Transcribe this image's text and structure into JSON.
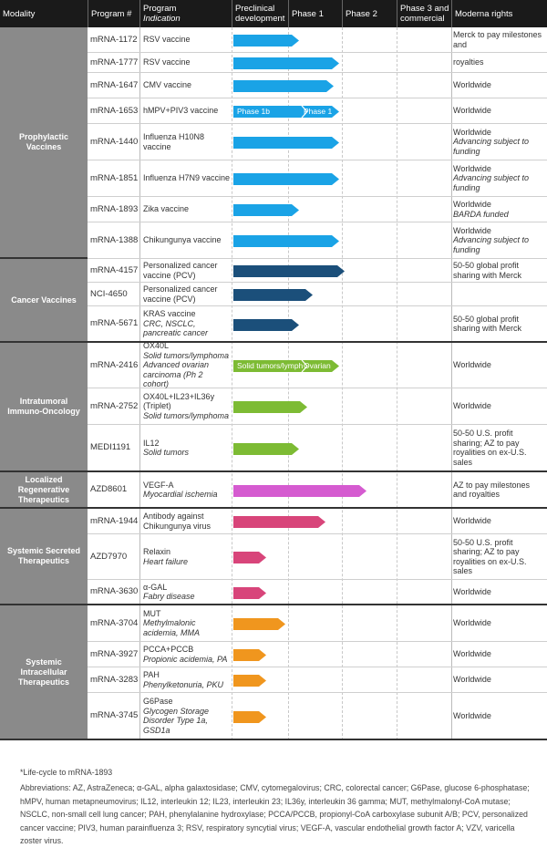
{
  "header": {
    "modality": "Modality",
    "program": "Program #",
    "program_ind": "Program",
    "indication": "Indication",
    "preclinical": "Preclinical development",
    "phase1": "Phase 1",
    "phase2": "Phase 2",
    "phase3": "Phase 3 and commercial",
    "rights": "Moderna rights"
  },
  "colors": {
    "prophylactic": "#1aa3e6",
    "cancer": "#1b4f7a",
    "intratumoral": "#7dbb34",
    "regenerative": "#d55bd0",
    "secreted": "#d8457a",
    "intracellular": "#f0961e",
    "header": "#1a1a1a",
    "modality_bg": "#8a8a8a"
  },
  "modalities": [
    {
      "name": "Prophylactic Vaccines"
    },
    {
      "name": "Cancer Vaccines"
    },
    {
      "name": "Intratumoral Immuno-Oncology"
    },
    {
      "name": "Localized Regenerative Therapeutics"
    },
    {
      "name": "Systemic Secreted Therapeutics"
    },
    {
      "name": "Systemic Intracellular Therapeutics"
    }
  ],
  "rows": [
    {
      "program": "mRNA-1172",
      "indication": "RSV vaccine",
      "indication_sub": "",
      "rights": "Merck to pay milestones and",
      "rights_sub": "",
      "progress_phase": 1.2,
      "bar_label": "",
      "bar_label2": ""
    },
    {
      "program": "mRNA-1777",
      "indication": "RSV vaccine",
      "indication_sub": "",
      "rights": "royalties",
      "rights_sub": "",
      "progress_phase": 1.95,
      "bar_label": "",
      "bar_label2": ""
    },
    {
      "program": "mRNA-1647",
      "indication": "CMV vaccine",
      "indication_sub": "",
      "rights": "Worldwide",
      "rights_sub": "",
      "progress_phase": 1.85,
      "bar_label": "",
      "bar_label2": ""
    },
    {
      "program": "mRNA-1653",
      "indication": "hMPV+PIV3 vaccine",
      "indication_sub": "",
      "rights": "Worldwide",
      "rights_sub": "",
      "progress_phase": 1.95,
      "bar_label": "Phase 1b",
      "bar_label2": "Phase 1"
    },
    {
      "program": "mRNA-1440",
      "indication": "Influenza H10N8 vaccine",
      "indication_sub": "",
      "rights": "Worldwide",
      "rights_sub": "Advancing subject to funding",
      "progress_phase": 1.95,
      "bar_label": "",
      "bar_label2": ""
    },
    {
      "program": "mRNA-1851",
      "indication": "Influenza H7N9 vaccine",
      "indication_sub": "",
      "rights": "Worldwide",
      "rights_sub": "Advancing subject to funding",
      "progress_phase": 1.95,
      "bar_label": "",
      "bar_label2": ""
    },
    {
      "program": "mRNA-1893",
      "indication": "Zika vaccine",
      "indication_sub": "",
      "rights": "Worldwide",
      "rights_sub": "BARDA funded",
      "progress_phase": 1.2,
      "bar_label": "",
      "bar_label2": ""
    },
    {
      "program": "mRNA-1388",
      "indication": "Chikungunya vaccine",
      "indication_sub": "",
      "rights": "Worldwide",
      "rights_sub": "Advancing subject to funding",
      "progress_phase": 1.95,
      "bar_label": "",
      "bar_label2": ""
    },
    {
      "program": "mRNA-4157",
      "indication": "Personalized cancer vaccine (PCV)",
      "indication_sub": "",
      "rights": "50-50 global profit sharing with Merck",
      "rights_sub": "",
      "progress_phase": 2.05,
      "bar_label": "",
      "bar_label2": ""
    },
    {
      "program": "NCI-4650",
      "indication": "Personalized cancer vaccine (PCV)",
      "indication_sub": "",
      "rights": "",
      "rights_sub": "",
      "progress_phase": 1.45,
      "bar_label": "",
      "bar_label2": ""
    },
    {
      "program": "mRNA-5671",
      "indication": "KRAS vaccine",
      "indication_sub": "CRC, NSCLC, pancreatic cancer",
      "rights": "50-50 global profit sharing with Merck",
      "rights_sub": "",
      "progress_phase": 1.2,
      "bar_label": "",
      "bar_label2": ""
    },
    {
      "program": "mRNA-2416",
      "indication": "OX40L",
      "indication_sub": "Solid tumors/lymphoma Advanced ovarian carcinoma (Ph 2 cohort)",
      "rights": "Worldwide",
      "rights_sub": "",
      "progress_phase": 1.95,
      "bar_label": "Solid tumors/lymphoma",
      "bar_label2": "Ovarian"
    },
    {
      "program": "mRNA-2752",
      "indication": "OX40L+IL23+IL36y (Triplet)",
      "indication_sub": "Solid tumors/lymphoma",
      "rights": "Worldwide",
      "rights_sub": "",
      "progress_phase": 1.35,
      "bar_label": "",
      "bar_label2": ""
    },
    {
      "program": "MEDI1191",
      "indication": "IL12",
      "indication_sub": "Solid tumors",
      "rights": "50-50 U.S. profit sharing; AZ to pay royalities on ex-U.S. sales",
      "rights_sub": "",
      "progress_phase": 1.2,
      "bar_label": "",
      "bar_label2": ""
    },
    {
      "program": "AZD8601",
      "indication": "VEGF-A",
      "indication_sub": "Myocardial ischemia",
      "rights": "AZ to pay milestones and royalties",
      "rights_sub": "",
      "progress_phase": 2.45,
      "bar_label": "",
      "bar_label2": ""
    },
    {
      "program": "mRNA-1944",
      "indication": "Antibody against Chikungunya virus",
      "indication_sub": "",
      "rights": "Worldwide",
      "rights_sub": "",
      "progress_phase": 1.7,
      "bar_label": "",
      "bar_label2": ""
    },
    {
      "program": "AZD7970",
      "indication": "Relaxin",
      "indication_sub": "Heart failure",
      "rights": "50-50 U.S. profit sharing; AZ to pay royalities on ex-U.S. sales",
      "rights_sub": "",
      "progress_phase": 0.6,
      "bar_label": "",
      "bar_label2": ""
    },
    {
      "program": "mRNA-3630",
      "indication": "α-GAL",
      "indication_sub": "Fabry disease",
      "rights": "Worldwide",
      "rights_sub": "",
      "progress_phase": 0.6,
      "bar_label": "",
      "bar_label2": ""
    },
    {
      "program": "mRNA-3704",
      "indication": "MUT",
      "indication_sub": "Methylmalonic acidemia, MMA",
      "rights": "Worldwide",
      "rights_sub": "",
      "progress_phase": 0.95,
      "bar_label": "",
      "bar_label2": ""
    },
    {
      "program": "mRNA-3927",
      "indication": "PCCA+PCCB",
      "indication_sub": "Propionic acidemia, PA",
      "rights": "Worldwide",
      "rights_sub": "",
      "progress_phase": 0.6,
      "bar_label": "",
      "bar_label2": ""
    },
    {
      "program": "mRNA-3283",
      "indication": "PAH",
      "indication_sub": "Phenylketonuria, PKU",
      "rights": "Worldwide",
      "rights_sub": "",
      "progress_phase": 0.6,
      "bar_label": "",
      "bar_label2": ""
    },
    {
      "program": "mRNA-3745",
      "indication": "G6Pase",
      "indication_sub": "Glycogen Storage Disorder Type 1a, GSD1a",
      "rights": "Worldwide",
      "rights_sub": "",
      "progress_phase": 0.6,
      "bar_label": "",
      "bar_label2": ""
    }
  ],
  "footnotes": {
    "lifecycle": "*Life-cycle to mRNA-1893",
    "abbreviations": "Abbreviations: AZ, AstraZeneca; α-GAL, alpha galaxtosidase; CMV, cytomegalovirus; CRC, colorectal cancer; G6Pase, glucose 6-phosphatase; hMPV, human metapneumovirus; IL12, interleukin 12; IL23, interleukin 23; IL36y, interleukin 36 gamma; MUT, methylmalonyl-CoA mutase; NSCLC, non-small cell lung cancer; PAH, phenylalanine hydroxylase; PCCA/PCCB, propionyl-CoA carboxylase subunit A/B; PCV, personalized cancer vaccine; PIV3, human parainfluenza 3; RSV, respiratory syncytial virus; VEGF-A, vascular endothelial growth factor A; VZV, varicella zoster virus."
  }
}
